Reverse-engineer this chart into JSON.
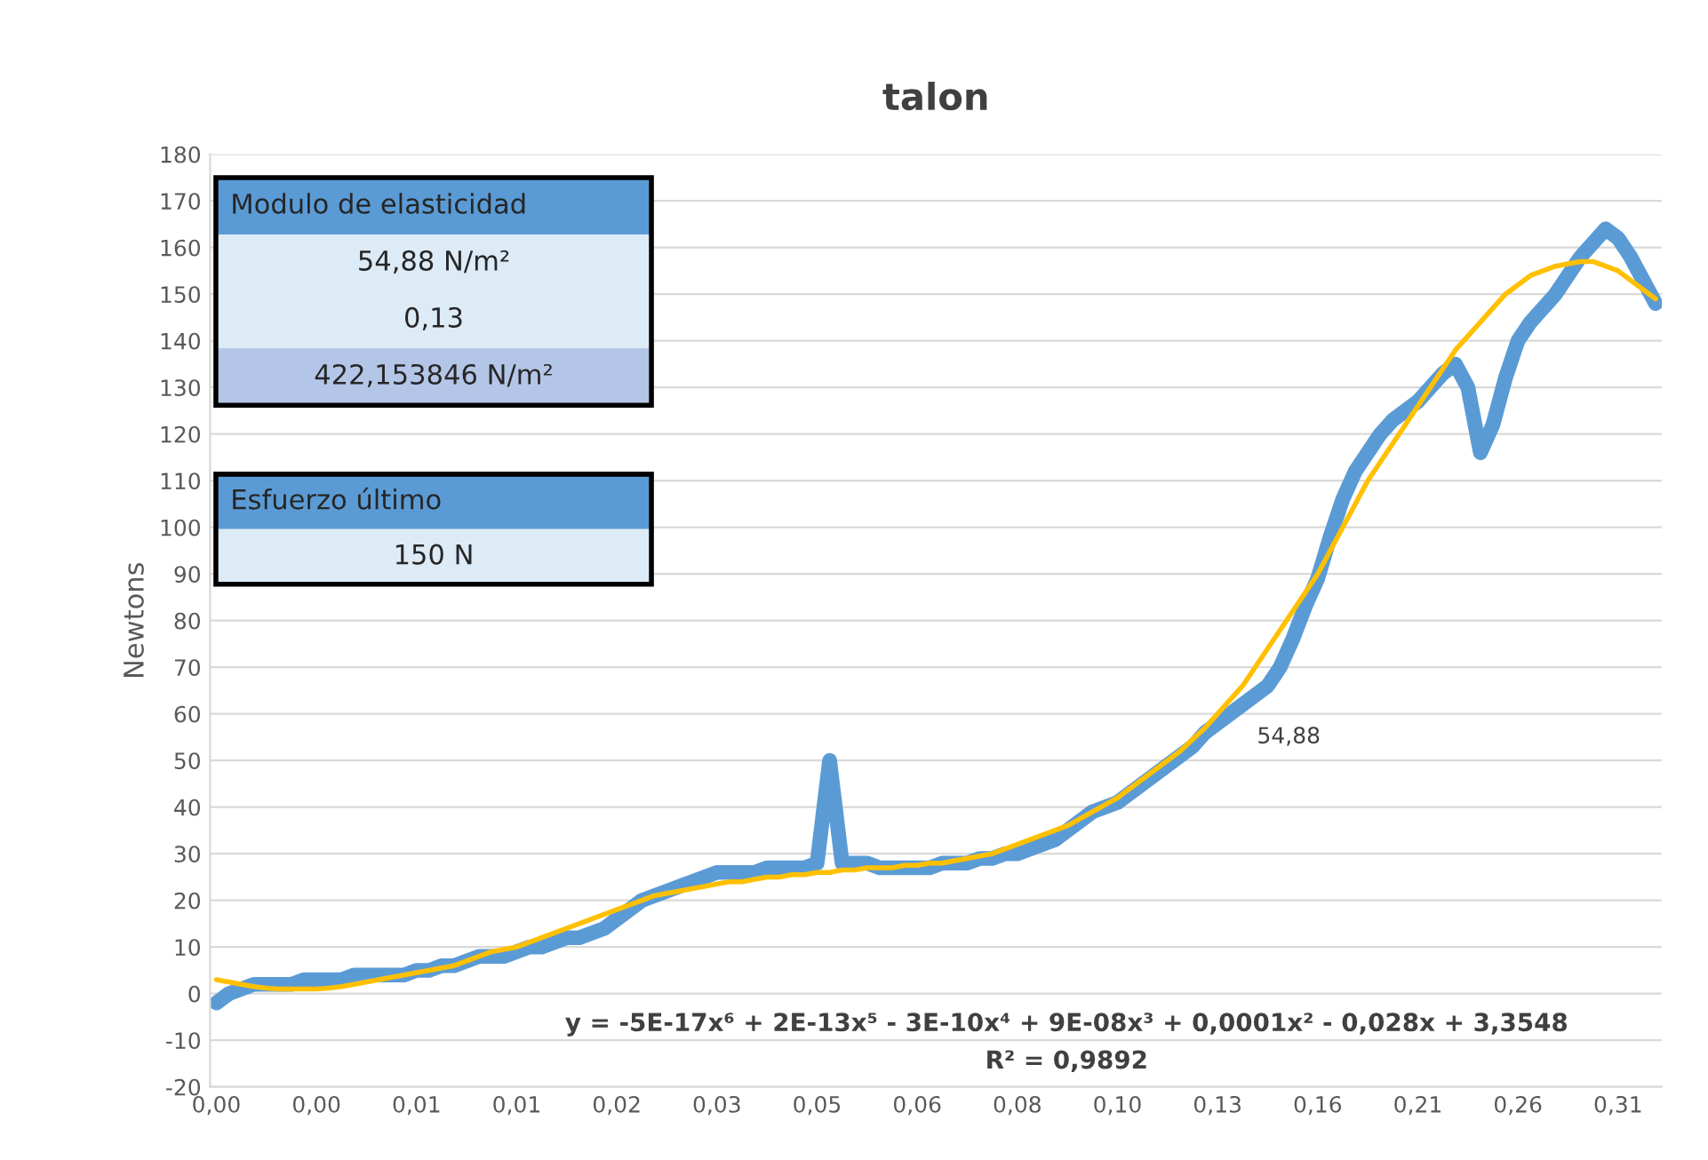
{
  "chart_data": {
    "type": "line",
    "title": "talon",
    "ylabel": "Newtons",
    "categories": [
      "0,00",
      null,
      null,
      null,
      null,
      null,
      null,
      null,
      "0,00",
      null,
      null,
      null,
      null,
      null,
      null,
      null,
      "0,01",
      null,
      null,
      null,
      null,
      null,
      null,
      null,
      "0,01",
      null,
      null,
      null,
      null,
      null,
      null,
      null,
      "0,02",
      null,
      null,
      null,
      null,
      null,
      null,
      null,
      "0,03",
      null,
      null,
      null,
      null,
      null,
      null,
      null,
      "0,05",
      null,
      null,
      null,
      null,
      null,
      null,
      null,
      "0,06",
      null,
      null,
      null,
      null,
      null,
      null,
      null,
      "0,08",
      null,
      null,
      null,
      null,
      null,
      null,
      null,
      "0,10",
      null,
      null,
      null,
      null,
      null,
      null,
      null,
      "0,13",
      null,
      null,
      null,
      null,
      null,
      null,
      null,
      "0,16",
      null,
      null,
      null,
      null,
      null,
      null,
      null,
      "0,21",
      null,
      null,
      null,
      null,
      null,
      null,
      null,
      "0,26",
      null,
      null,
      null,
      null,
      null,
      null,
      null,
      "0,31",
      null,
      null,
      null
    ],
    "series": [
      {
        "type": "line",
        "color": "#5b9bd5",
        "values": [
          -2,
          0,
          1,
          2,
          2,
          2,
          2,
          3,
          3,
          3,
          3,
          4,
          4,
          4,
          4,
          4,
          5,
          5,
          6,
          6,
          7,
          8,
          8,
          8,
          9,
          10,
          10,
          11,
          12,
          12,
          13,
          14,
          16,
          18,
          20,
          21,
          22,
          23,
          24,
          25,
          26,
          26,
          26,
          26,
          27,
          27,
          27,
          27,
          28,
          50,
          28,
          28,
          28,
          27,
          27,
          27,
          27,
          27,
          28,
          28,
          28,
          29,
          29,
          30,
          30,
          31,
          32,
          33,
          35,
          37,
          39,
          40,
          41,
          43,
          45,
          47,
          49,
          51,
          53,
          56,
          58,
          60,
          62,
          64,
          66,
          70,
          76,
          83,
          89,
          98,
          106,
          112,
          116,
          120,
          123,
          125,
          127,
          130,
          133,
          135,
          130,
          116,
          122,
          132,
          140,
          144,
          147,
          150,
          154,
          158,
          161,
          164,
          162,
          158,
          153,
          148
        ]
      },
      {
        "type": "line",
        "color": "#ffc000",
        "values": [
          3,
          2.5,
          2,
          1.5,
          1.2,
          1,
          1,
          1,
          1,
          1.2,
          1.5,
          2,
          2.5,
          3,
          3.5,
          4,
          4.5,
          5,
          5.5,
          6,
          7,
          8,
          9,
          9.5,
          10,
          11,
          12,
          13,
          14,
          15,
          16,
          17,
          18,
          19,
          20,
          21,
          21.5,
          22,
          22.5,
          23,
          23.5,
          24,
          24,
          24.5,
          25,
          25,
          25.5,
          25.5,
          26,
          26,
          26.5,
          26.5,
          27,
          27,
          27,
          27.5,
          27.5,
          28,
          28,
          28.5,
          29,
          29.5,
          30,
          31,
          32,
          33,
          34,
          35,
          36,
          37.5,
          39,
          40.5,
          42,
          44,
          46,
          48,
          50,
          52,
          54.5,
          57,
          60,
          63,
          66,
          70,
          74,
          78,
          82,
          86,
          90,
          95,
          100,
          105,
          110,
          114,
          118,
          122,
          126,
          130,
          134,
          138,
          141,
          144,
          147,
          150,
          152,
          154,
          155,
          156,
          156.5,
          157,
          157,
          156,
          155,
          153,
          151,
          149
        ]
      }
    ],
    "ylim": [
      -20,
      180
    ],
    "yticks": [
      -20,
      -10,
      0,
      10,
      20,
      30,
      40,
      50,
      60,
      70,
      80,
      90,
      100,
      110,
      120,
      130,
      140,
      150,
      160,
      170,
      180
    ],
    "grid": "y",
    "annotations": [
      "Modulo de elasticidad",
      "54,88 N/m²",
      "0,13",
      "422,153846 N/m²",
      "Esfuerzo último",
      "150 N",
      "54,88",
      "y = -5E-17x⁶ + 2E-13x⁵ - 3E-10x⁴ + 9E-08x³ + 0,0001x² - 0,028x + 3,3548",
      "R² = 0,9892"
    ]
  }
}
